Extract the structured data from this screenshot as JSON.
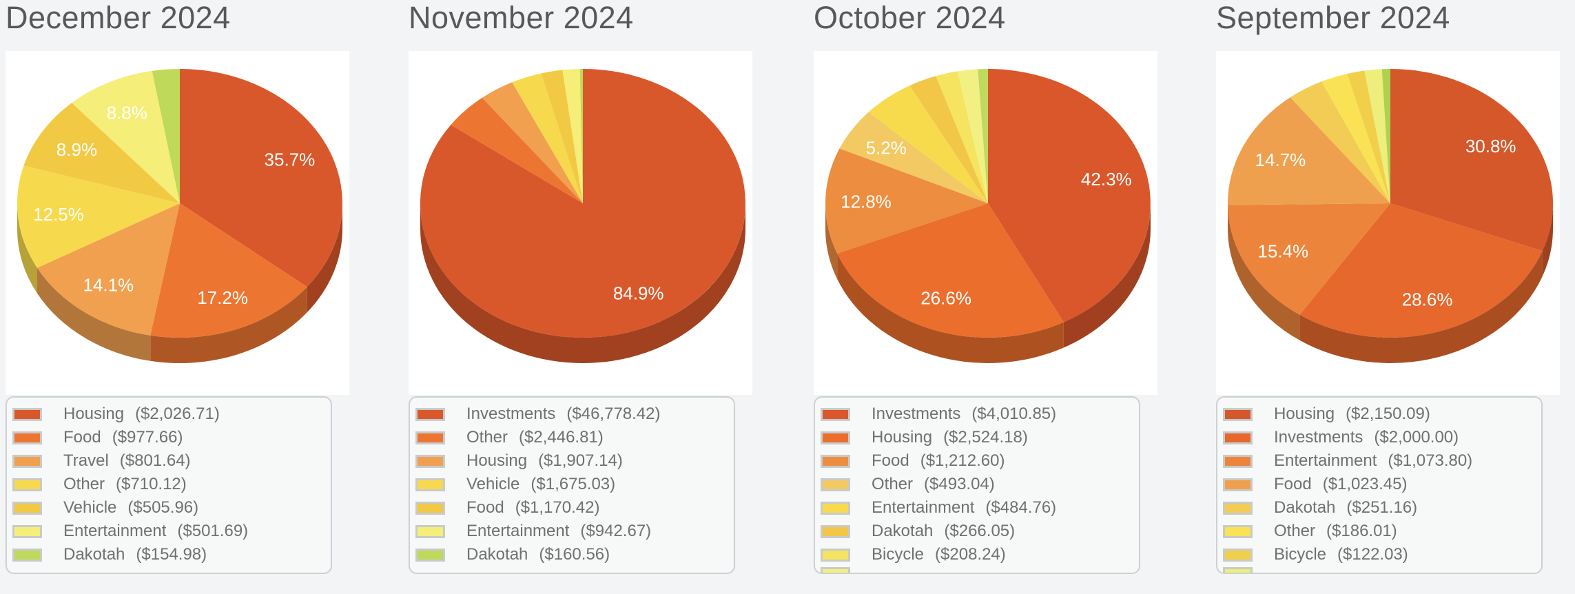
{
  "page": {
    "background_color": "#f2f4f6",
    "chart_area_color": "#ffffff",
    "legend_background_color": "#f7f8f8"
  },
  "chart_data": [
    {
      "type": "pie",
      "title": "December 2024",
      "legend_position": "bottom",
      "legend_partial_color": null,
      "slices": [
        {
          "name": "Housing",
          "amount": "($2,026.71)",
          "value": 2026.71,
          "pct_label": "35.7%",
          "color": "#D9582B",
          "in_legend": true
        },
        {
          "name": "Food",
          "amount": "($977.66)",
          "value": 977.66,
          "pct_label": "17.2%",
          "color": "#EC7631",
          "in_legend": true
        },
        {
          "name": "Travel",
          "amount": "($801.64)",
          "value": 801.64,
          "pct_label": "14.1%",
          "color": "#F0A04F",
          "in_legend": true
        },
        {
          "name": "Other",
          "amount": "($710.12)",
          "value": 710.12,
          "pct_label": "12.5%",
          "color": "#F7D94D",
          "in_legend": true
        },
        {
          "name": "Vehicle",
          "amount": "($505.96)",
          "value": 505.96,
          "pct_label": "8.9%",
          "color": "#F2C943",
          "in_legend": true
        },
        {
          "name": "Entertainment",
          "amount": "($501.69)",
          "value": 501.69,
          "pct_label": "8.8%",
          "color": "#F5EE78",
          "in_legend": true
        },
        {
          "name": "Dakotah",
          "amount": "($154.98)",
          "value": 154.98,
          "pct_label": null,
          "color": "#BFD95A",
          "in_legend": true
        }
      ]
    },
    {
      "type": "pie",
      "title": "November 2024",
      "legend_position": "bottom",
      "legend_partial_color": null,
      "slices": [
        {
          "name": "Investments",
          "amount": "($46,778.42)",
          "value": 46778.42,
          "pct_label": "84.9%",
          "color": "#D9582B",
          "in_legend": true
        },
        {
          "name": "Other",
          "amount": "($2,446.81)",
          "value": 2446.81,
          "pct_label": null,
          "color": "#EC7631",
          "in_legend": true
        },
        {
          "name": "Housing",
          "amount": "($1,907.14)",
          "value": 1907.14,
          "pct_label": null,
          "color": "#F0A04F",
          "in_legend": true
        },
        {
          "name": "Vehicle",
          "amount": "($1,675.03)",
          "value": 1675.03,
          "pct_label": null,
          "color": "#F7D94D",
          "in_legend": true
        },
        {
          "name": "Food",
          "amount": "($1,170.42)",
          "value": 1170.42,
          "pct_label": null,
          "color": "#F2C943",
          "in_legend": true
        },
        {
          "name": "Entertainment",
          "amount": "($942.67)",
          "value": 942.67,
          "pct_label": null,
          "color": "#F5EE78",
          "in_legend": true
        },
        {
          "name": "Dakotah",
          "amount": "($160.56)",
          "value": 160.56,
          "pct_label": null,
          "color": "#BFD95A",
          "in_legend": true
        }
      ]
    },
    {
      "type": "pie",
      "title": "October 2024",
      "legend_position": "bottom",
      "legend_partial_color": "#F2F083",
      "slices": [
        {
          "name": "Investments",
          "amount": "($4,010.85)",
          "value": 4010.85,
          "pct_label": "42.3%",
          "color": "#D9572B",
          "in_legend": true
        },
        {
          "name": "Housing",
          "amount": "($2,524.18)",
          "value": 2524.18,
          "pct_label": "26.6%",
          "color": "#EB6E2D",
          "in_legend": true
        },
        {
          "name": "Food",
          "amount": "($1,212.60)",
          "value": 1212.6,
          "pct_label": "12.8%",
          "color": "#EC8D3F",
          "in_legend": true
        },
        {
          "name": "Other",
          "amount": "($493.04)",
          "value": 493.04,
          "pct_label": "5.2%",
          "color": "#F2C963",
          "in_legend": true
        },
        {
          "name": "Entertainment",
          "amount": "($484.76)",
          "value": 484.76,
          "pct_label": null,
          "color": "#F7DB4D",
          "in_legend": true
        },
        {
          "name": "Dakotah",
          "amount": "($266.05)",
          "value": 266.05,
          "pct_label": null,
          "color": "#F2C747",
          "in_legend": true
        },
        {
          "name": "Bicycle",
          "amount": "($208.24)",
          "value": 208.24,
          "pct_label": null,
          "color": "#F4E45F",
          "in_legend": true
        },
        {
          "name": "",
          "amount": "",
          "value": 190.0,
          "pct_label": null,
          "color": "#F2F083",
          "in_legend": false
        },
        {
          "name": "",
          "amount": "",
          "value": 95.0,
          "pct_label": null,
          "color": "#BFDA5F",
          "in_legend": false
        }
      ]
    },
    {
      "type": "pie",
      "title": "September 2024",
      "legend_position": "bottom",
      "legend_partial_color": "#EDEE7C",
      "slices": [
        {
          "name": "Housing",
          "amount": "($2,150.09)",
          "value": 2150.09,
          "pct_label": "30.8%",
          "color": "#D4582A",
          "in_legend": true
        },
        {
          "name": "Investments",
          "amount": "($2,000.00)",
          "value": 2000.0,
          "pct_label": "28.6%",
          "color": "#E6682C",
          "in_legend": true
        },
        {
          "name": "Entertainment",
          "amount": "($1,073.80)",
          "value": 1073.8,
          "pct_label": "15.4%",
          "color": "#EC853B",
          "in_legend": true
        },
        {
          "name": "Food",
          "amount": "($1,023.45)",
          "value": 1023.45,
          "pct_label": "14.7%",
          "color": "#EFA04E",
          "in_legend": true
        },
        {
          "name": "Dakotah",
          "amount": "($251.16)",
          "value": 251.16,
          "pct_label": null,
          "color": "#F2CC55",
          "in_legend": true
        },
        {
          "name": "Other",
          "amount": "($186.01)",
          "value": 186.01,
          "pct_label": null,
          "color": "#F9E354",
          "in_legend": true
        },
        {
          "name": "Bicycle",
          "amount": "($122.03)",
          "value": 122.03,
          "pct_label": null,
          "color": "#F2CF4B",
          "in_legend": true
        },
        {
          "name": "",
          "amount": "",
          "value": 120.0,
          "pct_label": null,
          "color": "#EDEE7C",
          "in_legend": false
        },
        {
          "name": "",
          "amount": "",
          "value": 58.0,
          "pct_label": null,
          "color": "#AFD24E",
          "in_legend": false
        }
      ]
    }
  ]
}
